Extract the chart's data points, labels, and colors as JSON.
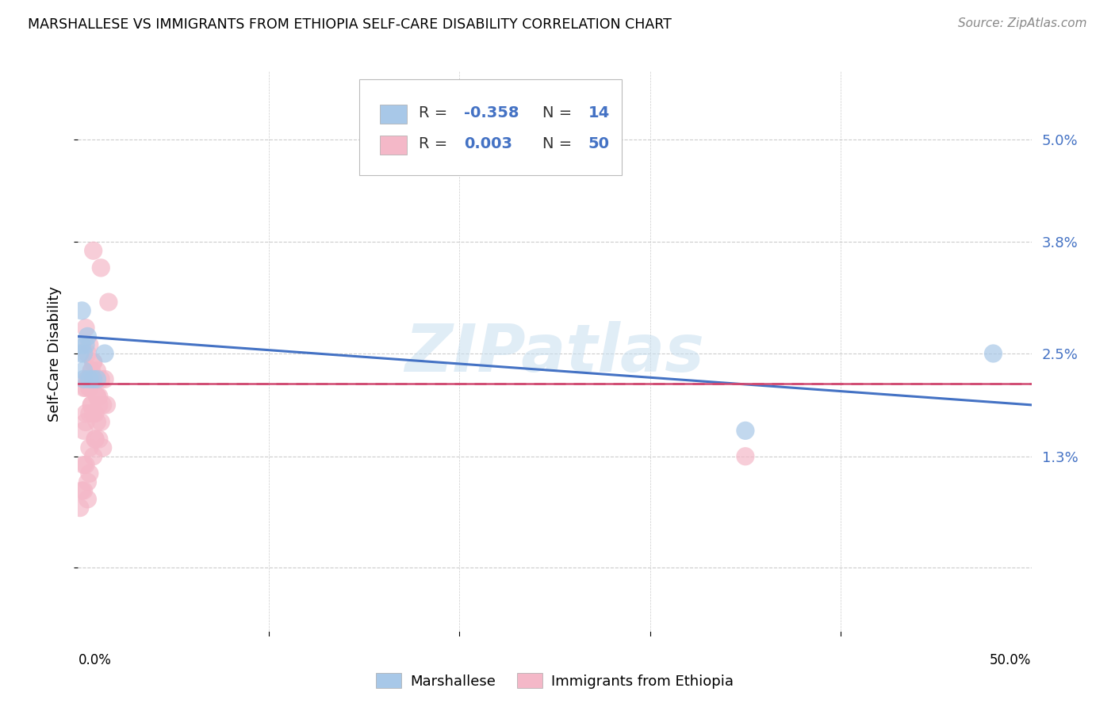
{
  "title": "MARSHALLESE VS IMMIGRANTS FROM ETHIOPIA SELF-CARE DISABILITY CORRELATION CHART",
  "source": "Source: ZipAtlas.com",
  "ylabel": "Self-Care Disability",
  "xlim": [
    0.0,
    0.5
  ],
  "ylim": [
    -0.008,
    0.058
  ],
  "yticks": [
    0.0,
    0.013,
    0.025,
    0.038,
    0.05
  ],
  "ytick_labels": [
    "",
    "1.3%",
    "2.5%",
    "3.8%",
    "5.0%"
  ],
  "blue_scatter_color": "#a8c8e8",
  "pink_scatter_color": "#f4b8c8",
  "blue_line_color": "#4472c4",
  "pink_line_color": "#d04870",
  "grid_color": "#cccccc",
  "watermark": "ZIPatlas",
  "marshallese_x": [
    0.001,
    0.002,
    0.002,
    0.003,
    0.003,
    0.003,
    0.004,
    0.005,
    0.006,
    0.008,
    0.01,
    0.014,
    0.35,
    0.48
  ],
  "marshallese_y": [
    0.025,
    0.026,
    0.03,
    0.025,
    0.022,
    0.023,
    0.026,
    0.027,
    0.022,
    0.022,
    0.022,
    0.025,
    0.016,
    0.025
  ],
  "ethiopia_x": [
    0.001,
    0.002,
    0.003,
    0.003,
    0.003,
    0.003,
    0.004,
    0.004,
    0.004,
    0.004,
    0.005,
    0.005,
    0.005,
    0.005,
    0.006,
    0.006,
    0.006,
    0.006,
    0.006,
    0.007,
    0.007,
    0.007,
    0.007,
    0.008,
    0.008,
    0.008,
    0.008,
    0.009,
    0.009,
    0.009,
    0.01,
    0.01,
    0.01,
    0.01,
    0.011,
    0.011,
    0.011,
    0.012,
    0.012,
    0.012,
    0.013,
    0.013,
    0.014,
    0.015,
    0.016,
    0.35,
    0.004,
    0.005,
    0.006,
    0.008
  ],
  "ethiopia_y": [
    0.007,
    0.009,
    0.012,
    0.021,
    0.016,
    0.009,
    0.017,
    0.018,
    0.021,
    0.028,
    0.008,
    0.022,
    0.022,
    0.025,
    0.014,
    0.018,
    0.021,
    0.021,
    0.026,
    0.019,
    0.019,
    0.023,
    0.023,
    0.013,
    0.018,
    0.024,
    0.024,
    0.015,
    0.015,
    0.018,
    0.02,
    0.02,
    0.023,
    0.017,
    0.015,
    0.019,
    0.02,
    0.017,
    0.022,
    0.035,
    0.014,
    0.019,
    0.022,
    0.019,
    0.031,
    0.013,
    0.012,
    0.01,
    0.011,
    0.037
  ],
  "blue_line_x0": 0.0,
  "blue_line_y0": 0.027,
  "blue_line_x1": 0.5,
  "blue_line_y1": 0.019,
  "pink_line_x0": 0.0,
  "pink_line_y0": 0.0215,
  "pink_line_x1": 0.5,
  "pink_line_y1": 0.0215
}
